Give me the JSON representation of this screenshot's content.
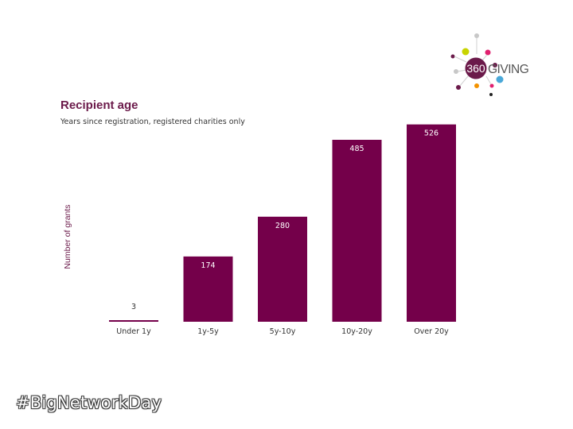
{
  "logo": {
    "number": "360",
    "word": "GIVING"
  },
  "chart_data": {
    "type": "bar",
    "title": "Recipient age",
    "subtitle": "Years since registration, registered charities only",
    "xlabel": "",
    "ylabel": "Number of grants",
    "categories": [
      "Under 1y",
      "1y-5y",
      "5y-10y",
      "10y-20y",
      "Over 20y"
    ],
    "values": [
      3,
      174,
      280,
      485,
      526
    ],
    "ylim": [
      0,
      540
    ],
    "bar_color": "#74004a",
    "grid": false,
    "legend": "none"
  },
  "footer": {
    "hashtag": "#BigNetworkDay"
  }
}
